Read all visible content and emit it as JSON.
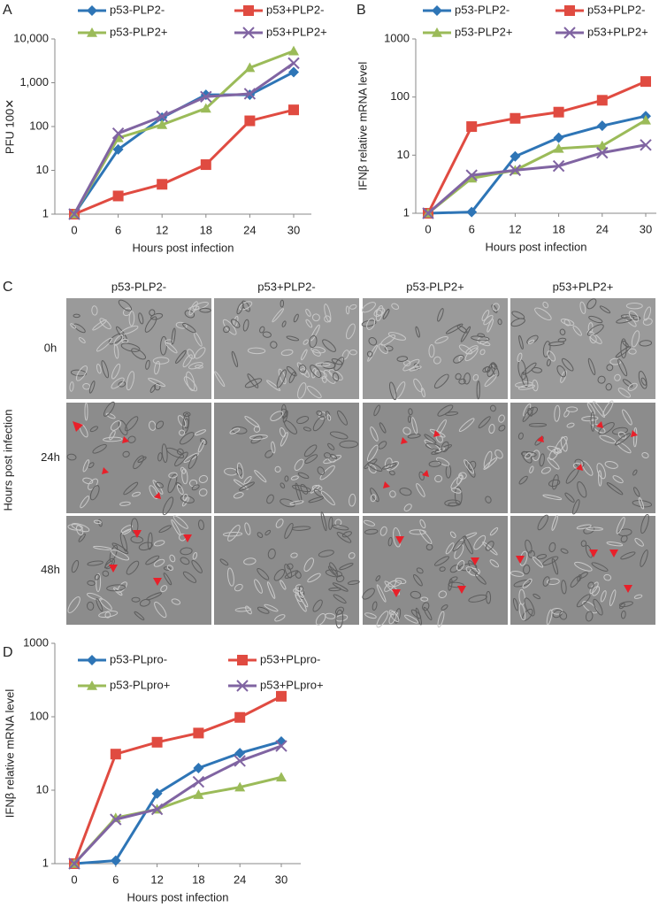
{
  "chart_data": [
    {
      "type": "line",
      "panel": "A",
      "xlabel": "Hours post infection",
      "ylabel": "PFU 100✕",
      "log_scale": true,
      "legend": "top",
      "x": [
        0,
        6,
        12,
        18,
        24,
        30
      ],
      "xlim": [
        0,
        30
      ],
      "xticks": [
        0,
        6,
        12,
        18,
        24,
        30
      ],
      "ylim": [
        1,
        10000
      ],
      "yticks": [
        1,
        10,
        100,
        {
          "value": 1000,
          "label": "1,000"
        },
        {
          "value": 10000,
          "label": "10,000"
        }
      ],
      "series": [
        {
          "name": "p53-PLP2-",
          "color": "#2e75b6",
          "marker": "diamond",
          "values": [
            1,
            30,
            160,
            530,
            530,
            1750
          ]
        },
        {
          "name": "p53+PLP2-",
          "color": "#e04b41",
          "marker": "square",
          "values": [
            1,
            2.6,
            4.8,
            13.5,
            135,
            240
          ]
        },
        {
          "name": "p53-PLP2+",
          "color": "#9bbb59",
          "marker": "triangle",
          "values": [
            1,
            55,
            110,
            260,
            2200,
            5300
          ]
        },
        {
          "name": "p53+PLP2+",
          "color": "#8064a2",
          "marker": "cross",
          "values": [
            1,
            70,
            170,
            480,
            560,
            2800
          ]
        }
      ]
    },
    {
      "type": "line",
      "panel": "B",
      "xlabel": "Hours post infection",
      "ylabel": "IFNβ relative mRNA level",
      "log_scale": true,
      "legend": "top",
      "x": [
        0,
        6,
        12,
        18,
        24,
        30
      ],
      "xlim": [
        0,
        30
      ],
      "xticks": [
        0,
        6,
        12,
        18,
        24,
        30
      ],
      "ylim": [
        1,
        1000
      ],
      "yticks": [
        1,
        10,
        100,
        1000
      ],
      "series": [
        {
          "name": "p53-PLP2-",
          "color": "#2e75b6",
          "marker": "diamond",
          "values": [
            1,
            1.05,
            9.5,
            20,
            32,
            47
          ]
        },
        {
          "name": "p53+PLP2-",
          "color": "#e04b41",
          "marker": "square",
          "values": [
            1,
            31,
            43,
            55,
            88,
            185
          ]
        },
        {
          "name": "p53-PLP2+",
          "color": "#9bbb59",
          "marker": "triangle",
          "values": [
            1,
            4,
            5.5,
            13,
            14.5,
            40
          ]
        },
        {
          "name": "p53+PLP2+",
          "color": "#8064a2",
          "marker": "cross",
          "values": [
            1,
            4.5,
            5.5,
            6.5,
            11,
            15
          ]
        }
      ]
    },
    {
      "type": "line",
      "panel": "D",
      "xlabel": "Hours post infection",
      "ylabel": "IFNβ relative mRNA level",
      "log_scale": true,
      "legend": "top",
      "x": [
        0,
        6,
        12,
        18,
        24,
        30
      ],
      "xlim": [
        0,
        30
      ],
      "xticks": [
        0,
        6,
        12,
        18,
        24,
        30
      ],
      "ylim": [
        1,
        1000
      ],
      "yticks": [
        1,
        10,
        100,
        1000
      ],
      "series": [
        {
          "name": "p53-PLpro-",
          "color": "#2e75b6",
          "marker": "diamond",
          "values": [
            1,
            1.1,
            9,
            20,
            32,
            46
          ]
        },
        {
          "name": "p53+PLpro-",
          "color": "#e04b41",
          "marker": "square",
          "values": [
            1,
            31,
            45,
            60,
            98,
            190
          ]
        },
        {
          "name": "p53-PLpro+",
          "color": "#9bbb59",
          "marker": "triangle",
          "values": [
            1,
            4.2,
            5.5,
            8.7,
            11,
            15
          ]
        },
        {
          "name": "p53+PLpro+",
          "color": "#8064a2",
          "marker": "cross",
          "values": [
            1,
            4,
            5.5,
            13,
            25,
            40
          ]
        }
      ]
    }
  ],
  "micrographs": {
    "panel": "C",
    "ylabel": "Hours post infection",
    "columns": [
      "p53-PLP2-",
      "p53+PLP2-",
      "p53-PLP2+",
      "p53+PLP2+"
    ],
    "rows": [
      "0h",
      "24h",
      "48h"
    ]
  }
}
